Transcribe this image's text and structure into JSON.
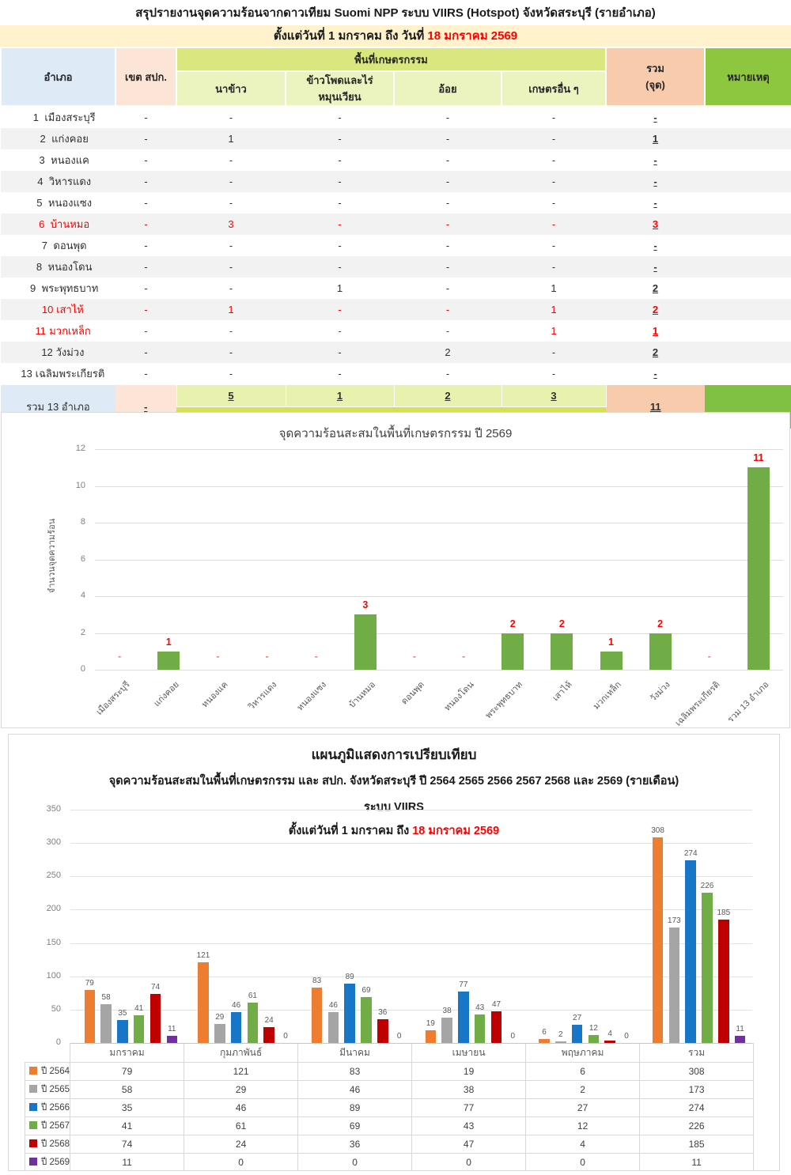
{
  "report": {
    "title": "สรุปรายงานจุดความร้อนจากดาวเทียม Suomi NPP ระบบ VIIRS (Hotspot) จังหวัดสระบุรี (รายอำเภอ)",
    "subtitle_prefix": "ตั้งแต่วันที่ 1 มกราคม  ถึง วันที่ ",
    "subtitle_date": "18 มกราคม 2569"
  },
  "summary_table": {
    "headers": {
      "district": "อำเภอ",
      "spk": "เขต สปก.",
      "agri_group": "พื้นที่เกษตรกรรม",
      "agri_cols": [
        "นาข้าว",
        "ข้าวโพดและไร่หมุนเวียน",
        "อ้อย",
        "เกษตรอื่น ๆ"
      ],
      "total_line1": "รวม",
      "total_line2": "(จุด)",
      "note": "หมายเหตุ"
    },
    "rows": [
      {
        "no": "1",
        "name": "เมืองสระบุรี",
        "spk": "-",
        "vals": [
          "-",
          "-",
          "-",
          "-"
        ],
        "total": "-",
        "red": false
      },
      {
        "no": "2",
        "name": "แก่งคอย",
        "spk": "-",
        "vals": [
          "1",
          "-",
          "-",
          "-"
        ],
        "total": "1",
        "red": false
      },
      {
        "no": "3",
        "name": "หนองแค",
        "spk": "-",
        "vals": [
          "-",
          "-",
          "-",
          "-"
        ],
        "total": "-",
        "red": false
      },
      {
        "no": "4",
        "name": "วิหารแดง",
        "spk": "-",
        "vals": [
          "-",
          "-",
          "-",
          "-"
        ],
        "total": "-",
        "red": false
      },
      {
        "no": "5",
        "name": "หนองแซง",
        "spk": "-",
        "vals": [
          "-",
          "-",
          "-",
          "-"
        ],
        "total": "-",
        "red": false
      },
      {
        "no": "6",
        "name": "บ้านหมอ",
        "spk": "-",
        "vals": [
          "3",
          "-",
          "-",
          "-"
        ],
        "total": "3",
        "red": true
      },
      {
        "no": "7",
        "name": "ดอนพุด",
        "spk": "-",
        "vals": [
          "-",
          "-",
          "-",
          "-"
        ],
        "total": "-",
        "red": false
      },
      {
        "no": "8",
        "name": "หนองโดน",
        "spk": "-",
        "vals": [
          "-",
          "-",
          "-",
          "-"
        ],
        "total": "-",
        "red": false
      },
      {
        "no": "9",
        "name": "พระพุทธบาท",
        "spk": "-",
        "vals": [
          "-",
          "1",
          "-",
          "1"
        ],
        "total": "2",
        "red": false
      },
      {
        "no": "10",
        "name": "เสาไห้",
        "spk": "-",
        "vals": [
          "1",
          "-",
          "-",
          "1"
        ],
        "total": "2",
        "red": true
      },
      {
        "no": "11",
        "name": "มวกเหล็ก",
        "spk": "-",
        "vals": [
          "-",
          "-",
          "-",
          "1"
        ],
        "total": "1",
        "red": true
      },
      {
        "no": "12",
        "name": "วังม่วง",
        "spk": "-",
        "vals": [
          "-",
          "-",
          "2",
          "-"
        ],
        "total": "2",
        "red": false
      },
      {
        "no": "13",
        "name": "เฉลิมพระเกียรติ",
        "spk": "-",
        "vals": [
          "-",
          "-",
          "-",
          "-"
        ],
        "total": "-",
        "red": false
      }
    ],
    "footer": {
      "label": "รวม 13 อำเภอ",
      "spk": "-",
      "vals": [
        "5",
        "1",
        "2",
        "3"
      ],
      "agri_total": "11",
      "total": "11"
    }
  },
  "chart_data": [
    {
      "type": "bar",
      "title": "จุดความร้อนสะสมในพื้นที่เกษตรกรรม ปี 2569",
      "xlabel": "",
      "ylabel": "จำนวนจุดความร้อน",
      "ylim": [
        0,
        12
      ],
      "ytick_step": 2,
      "grid": true,
      "categories": [
        "เมืองสระบุรี",
        "แก่งคอย",
        "หนองแค",
        "วิหารแดง",
        "หนองแซง",
        "บ้านหมอ",
        "ดอนพุด",
        "หนองโดน",
        "พระพุทธบาท",
        "เสาไห้",
        "มวกเหล็ก",
        "วังม่วง",
        "เฉลิมพระเกียรติ",
        "รวม 13 อำเภอ"
      ],
      "values": [
        0,
        1,
        0,
        0,
        0,
        3,
        0,
        0,
        2,
        2,
        1,
        2,
        0,
        11
      ],
      "zero_label": "-",
      "bar_color": "#70AD47",
      "label_color": "#FF0000"
    },
    {
      "type": "bar",
      "title": "แผนภูมิแสดงการเปรียบเทียบ",
      "subtitle": "จุดความร้อนสะสมในพื้นที่เกษตรกรรม  และ สปก. จังหวัดสระบุรี ปี  2564 2565 2566 2567 2568 และ 2569 (รายเดือน)",
      "subtitle2": "ระบบ VIIRS",
      "date_prefix": "ตั้งแต่วันที่ 1 มกราคม ถึง ",
      "date_highlight": "18 มกราคม 2569",
      "ylim": [
        0,
        350
      ],
      "ytick_step": 50,
      "grid": true,
      "legend_position": "table-left",
      "categories": [
        "มกราคม",
        "กุมภาพันธ์",
        "มีนาคม",
        "เมษายน",
        "พฤษภาคม",
        "รวม"
      ],
      "series": [
        {
          "name": "ปี 2564",
          "color": "#ED7D31",
          "values": [
            79,
            121,
            83,
            19,
            6,
            308
          ]
        },
        {
          "name": "ปี 2565",
          "color": "#A5A5A5",
          "values": [
            58,
            29,
            46,
            38,
            2,
            173
          ]
        },
        {
          "name": "ปี 2566",
          "color": "#1776C5",
          "values": [
            35,
            46,
            89,
            77,
            27,
            274
          ]
        },
        {
          "name": "ปี 2567",
          "color": "#70AD47",
          "values": [
            41,
            61,
            69,
            43,
            12,
            226
          ]
        },
        {
          "name": "ปี 2568",
          "color": "#C00000",
          "values": [
            74,
            24,
            36,
            47,
            4,
            185
          ]
        },
        {
          "name": "ปี 2569",
          "color": "#7030A0",
          "values": [
            11,
            0,
            0,
            0,
            0,
            11
          ]
        }
      ]
    }
  ],
  "colors": {
    "accent_red": "#FF0000",
    "zero_marker": "#DF7B6E",
    "title_band": "#FFF2CC",
    "header_blue": "#DEEAF6",
    "header_peach": "#FCE4D6",
    "header_green_band": "#D9E77E",
    "header_green_sub": "#EBF3BF",
    "header_salmon": "#F8CBAD",
    "header_green": "#8DC63F",
    "footer_sub_green": "#E8F1AE",
    "footer_lime": "#D4E157",
    "row_stripe": "#F2F2F2"
  }
}
